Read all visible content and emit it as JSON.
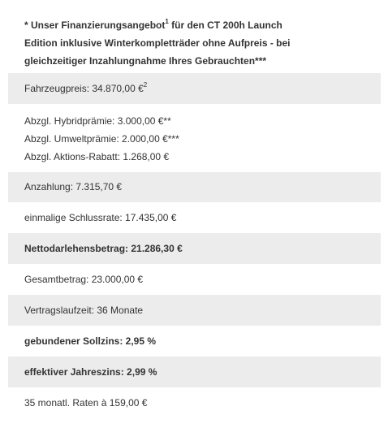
{
  "offer": {
    "line1_a": "* Unser Finanzierungsangebot",
    "line1_sup": "1",
    "line1_b": " für den CT 200h Launch",
    "line2": "Edition inklusive Winterkompletträder ohne Aufpreis - bei",
    "line3": "gleichzeitiger Inzahlungnahme Ihres Gebrauchten***"
  },
  "rows": {
    "fahrzeugpreis": {
      "text": "Fahrzeugpreis: 34.870,00 €",
      "sup": "2"
    },
    "abzuege": [
      "Abzgl. Hybridprämie: 3.000,00 €**",
      "Abzgl. Umweltprämie: 2.000,00 €***",
      "Abzgl. Aktions-Rabatt: 1.268,00 €"
    ],
    "anzahlung": "Anzahlung: 7.315,70 €",
    "schlussrate": "einmalige Schlussrate: 17.435,00 €",
    "nettodarlehen": "Nettodarlehensbetrag: 21.286,30 €",
    "gesamtbetrag": "Gesamtbetrag: 23.000,00 €",
    "laufzeit": "Vertragslaufzeit: 36 Monate",
    "sollzins": "gebundener Sollzins: 2,95 %",
    "jahreszins": "effektiver Jahreszins: 2,99 %",
    "raten": "35 monatl. Raten à 159,00 €"
  }
}
